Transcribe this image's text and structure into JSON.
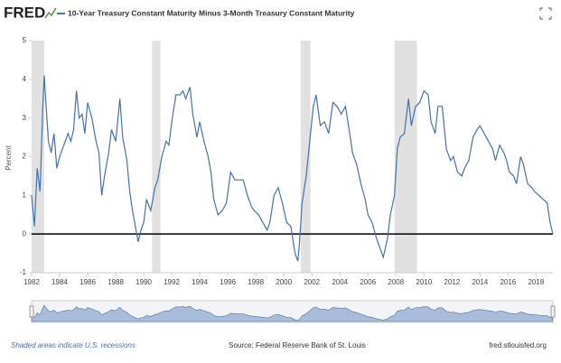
{
  "logo": "FRED",
  "chart_data": {
    "type": "line",
    "title": "10-Year Treasury Constant Maturity Minus 3-Month Treasury Constant Maturity",
    "y_label": "Percent",
    "x": [
      1982.0,
      1982.2,
      1982.4,
      1982.6,
      1982.8,
      1982.9,
      1983.0,
      1983.2,
      1983.4,
      1983.6,
      1983.8,
      1984.0,
      1984.3,
      1984.6,
      1984.8,
      1985.0,
      1985.2,
      1985.4,
      1985.6,
      1985.8,
      1986.0,
      1986.3,
      1986.6,
      1986.8,
      1987.0,
      1987.2,
      1987.5,
      1987.7,
      1988.0,
      1988.3,
      1988.5,
      1988.8,
      1989.0,
      1989.2,
      1989.4,
      1989.6,
      1989.8,
      1990.0,
      1990.2,
      1990.5,
      1990.8,
      1991.0,
      1991.3,
      1991.6,
      1991.8,
      1992.0,
      1992.3,
      1992.6,
      1992.8,
      1993.0,
      1993.3,
      1993.5,
      1993.8,
      1994.0,
      1994.3,
      1994.6,
      1994.8,
      1995.0,
      1995.3,
      1995.6,
      1995.9,
      1996.2,
      1996.5,
      1996.8,
      1997.1,
      1997.4,
      1997.7,
      1997.9,
      1998.2,
      1998.5,
      1998.8,
      1999.0,
      1999.3,
      1999.6,
      1999.9,
      2000.2,
      2000.5,
      2000.8,
      2001.0,
      2001.1,
      2001.3,
      2001.6,
      2001.9,
      2002.1,
      2002.3,
      2002.6,
      2002.9,
      2003.2,
      2003.5,
      2003.8,
      2004.1,
      2004.4,
      2004.7,
      2004.9,
      2005.2,
      2005.5,
      2005.8,
      2006.0,
      2006.3,
      2006.6,
      2006.9,
      2007.1,
      2007.4,
      2007.6,
      2007.9,
      2008.1,
      2008.3,
      2008.6,
      2008.9,
      2009.1,
      2009.4,
      2009.7,
      2010.0,
      2010.3,
      2010.5,
      2010.8,
      2011.0,
      2011.3,
      2011.6,
      2011.9,
      2012.1,
      2012.4,
      2012.7,
      2012.9,
      2013.2,
      2013.5,
      2013.8,
      2014.0,
      2014.3,
      2014.6,
      2014.9,
      2015.1,
      2015.4,
      2015.7,
      2015.9,
      2016.1,
      2016.4,
      2016.6,
      2016.9,
      2017.1,
      2017.4,
      2017.7,
      2017.9,
      2018.2,
      2018.5,
      2018.8,
      2019.0,
      2019.2
    ],
    "series": [
      {
        "name": "10-Year Treasury Constant Maturity Minus 3-Month Treasury Constant Maturity",
        "color": "#4572a7",
        "values": [
          1.0,
          0.2,
          1.7,
          1.1,
          3.3,
          4.1,
          3.5,
          2.4,
          2.1,
          2.6,
          1.7,
          2.0,
          2.3,
          2.6,
          2.4,
          2.7,
          3.7,
          3.0,
          3.1,
          2.6,
          3.4,
          3.0,
          2.4,
          2.1,
          1.0,
          1.5,
          2.1,
          2.7,
          2.4,
          3.5,
          2.5,
          1.9,
          1.1,
          0.6,
          0.2,
          -0.2,
          0.1,
          0.3,
          0.9,
          0.6,
          1.2,
          1.4,
          2.0,
          2.4,
          2.3,
          2.9,
          3.6,
          3.6,
          3.7,
          3.5,
          3.8,
          3.1,
          2.5,
          2.9,
          2.4,
          2.0,
          1.6,
          0.9,
          0.5,
          0.6,
          0.8,
          1.6,
          1.4,
          1.4,
          1.4,
          1.0,
          0.7,
          0.6,
          0.5,
          0.3,
          0.1,
          0.3,
          1.0,
          1.2,
          0.8,
          0.3,
          0.2,
          -0.5,
          -0.7,
          -0.3,
          0.8,
          1.5,
          2.6,
          3.3,
          3.6,
          2.8,
          2.9,
          2.6,
          3.4,
          3.3,
          3.1,
          3.3,
          2.6,
          2.1,
          1.8,
          1.3,
          0.9,
          0.5,
          0.3,
          -0.1,
          -0.4,
          -0.6,
          -0.1,
          0.5,
          1.0,
          2.2,
          2.5,
          2.6,
          3.5,
          2.8,
          3.3,
          3.4,
          3.7,
          3.6,
          2.9,
          2.6,
          3.3,
          3.3,
          2.2,
          1.9,
          2.0,
          1.6,
          1.5,
          1.7,
          1.9,
          2.5,
          2.7,
          2.8,
          2.6,
          2.4,
          2.2,
          1.9,
          2.3,
          2.1,
          1.9,
          1.6,
          1.5,
          1.3,
          2.0,
          1.8,
          1.3,
          1.2,
          1.1,
          1.0,
          0.9,
          0.8,
          0.3,
          0.0
        ]
      }
    ],
    "recessions": [
      [
        1982.0,
        1982.9
      ],
      [
        1990.6,
        1991.2
      ],
      [
        2001.2,
        2001.9
      ],
      [
        2007.9,
        2009.5
      ]
    ],
    "recession_color": "#e1e1e1",
    "xlim": [
      1982.0,
      2019.2
    ],
    "xticks": [
      1982,
      1984,
      1986,
      1988,
      1990,
      1992,
      1994,
      1996,
      1998,
      2000,
      2002,
      2004,
      2006,
      2008,
      2010,
      2012,
      2014,
      2016,
      2018
    ],
    "ylim": [
      -1,
      5
    ],
    "yticks": [
      -1,
      0,
      1,
      2,
      3,
      4,
      5
    ],
    "grid": false
  },
  "note": "Shaded areas indicate U.S. recessions",
  "source": "Source: Federal Reserve Bank of St. Louis",
  "website": "fred.stlouisfed.org"
}
